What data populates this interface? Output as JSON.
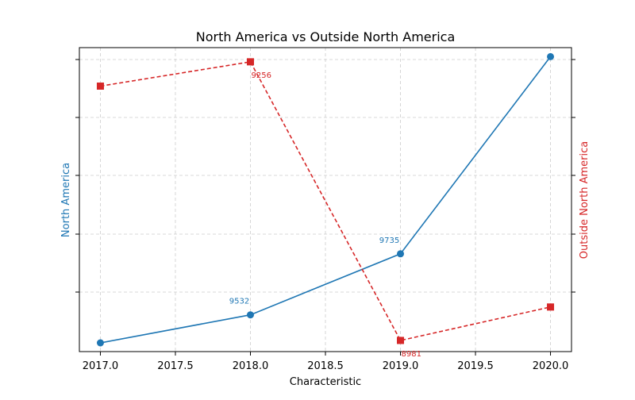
{
  "chart_data": {
    "type": "line",
    "title": "North America vs Outside North America",
    "xlabel": "Characteristic",
    "ylabel_left": "North America",
    "ylabel_right": "Outside North America",
    "x": [
      2017,
      2018,
      2019,
      2020
    ],
    "xlim": [
      2016.86,
      2020.14
    ],
    "x_ticks": [
      "2017.0",
      "2017.5",
      "2018.0",
      "2018.5",
      "2019.0",
      "2019.5",
      "2020.0"
    ],
    "grid": true,
    "series": [
      {
        "name": "North America",
        "axis": "left",
        "values": [
          9439,
          9532,
          9735,
          10390
        ],
        "ylim": [
          9410,
          10420
        ],
        "color": "#1f77b4",
        "line_style": "solid",
        "marker": "circle",
        "data_labels": [
          "",
          "9532",
          "9735",
          ""
        ]
      },
      {
        "name": "Outside North America",
        "axis": "right",
        "values": [
          9232,
          9256,
          8981,
          9014
        ],
        "ylim": [
          8970,
          9270
        ],
        "color": "#d62728",
        "line_style": "dashed",
        "marker": "square",
        "data_labels": [
          "",
          "9256",
          "8981",
          ""
        ]
      }
    ]
  }
}
